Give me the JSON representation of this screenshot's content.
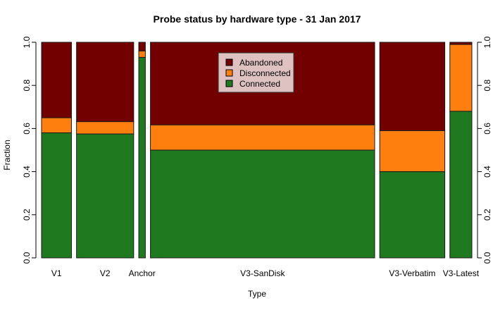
{
  "chart_data": {
    "type": "bar",
    "subtype": "stacked-proportional-width (spineplot)",
    "title": "Probe status by hardware type - 31 Jan 2017",
    "xlabel": "Type",
    "ylabel": "Fraction",
    "ylim": [
      0,
      1
    ],
    "y_ticks": [
      "0.0",
      "0.2",
      "0.4",
      "0.6",
      "0.8",
      "1.0"
    ],
    "categories": [
      "V1",
      "V2",
      "Anchor",
      "V3-SanDisk",
      "V3-Verbatim",
      "V3-Latest"
    ],
    "relative_widths": [
      0.068,
      0.13,
      0.015,
      0.51,
      0.148,
      0.05
    ],
    "series": [
      {
        "name": "Connected",
        "color": "#1f7a1f",
        "values": [
          0.58,
          0.575,
          0.93,
          0.5,
          0.4,
          0.68
        ]
      },
      {
        "name": "Disconnected",
        "color": "#ff7f0e",
        "values": [
          0.07,
          0.057,
          0.03,
          0.117,
          0.19,
          0.31
        ]
      },
      {
        "name": "Abandoned",
        "color": "#730000",
        "values": [
          0.35,
          0.368,
          0.04,
          0.383,
          0.41,
          0.01
        ]
      }
    ],
    "legend": {
      "position": "inside-top-center",
      "entries": [
        "Abandoned",
        "Disconnected",
        "Connected"
      ],
      "background": "#dec2c2"
    },
    "axes": {
      "left_ticks": true,
      "right_ticks": true,
      "grid": false
    }
  },
  "labels": {
    "title": "Probe status by hardware type - 31 Jan 2017",
    "xlabel": "Type",
    "ylabel": "Fraction"
  }
}
